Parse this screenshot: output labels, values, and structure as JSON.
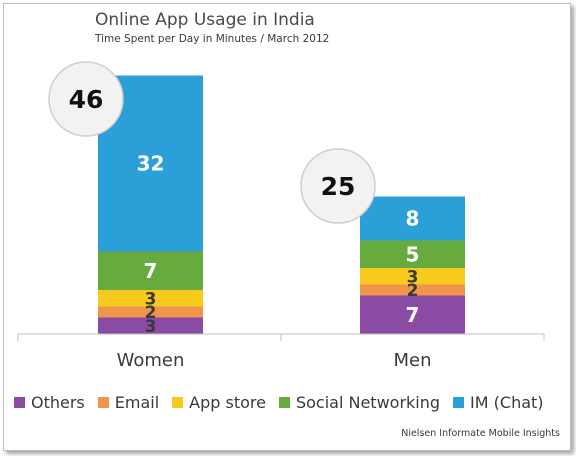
{
  "chart_data": {
    "type": "bar",
    "stacked": true,
    "title": "Online App Usage in India",
    "subtitle": "Time Spent per Day in Minutes / March 2012",
    "categories": [
      "Women",
      "Men"
    ],
    "totals": [
      46,
      25
    ],
    "series": [
      {
        "name": "Others",
        "values": [
          3,
          7
        ],
        "color": "#8b4aa3"
      },
      {
        "name": "Email",
        "values": [
          2,
          2
        ],
        "color": "#f0964a"
      },
      {
        "name": "App store",
        "values": [
          3,
          3
        ],
        "color": "#f7cb1e"
      },
      {
        "name": "Social Networking",
        "values": [
          7,
          5
        ],
        "color": "#67ab3e"
      },
      {
        "name": "IM (Chat)",
        "values": [
          32,
          8
        ],
        "color": "#2b9fd8"
      }
    ],
    "source": "Nielsen Informate Mobile Insights"
  }
}
